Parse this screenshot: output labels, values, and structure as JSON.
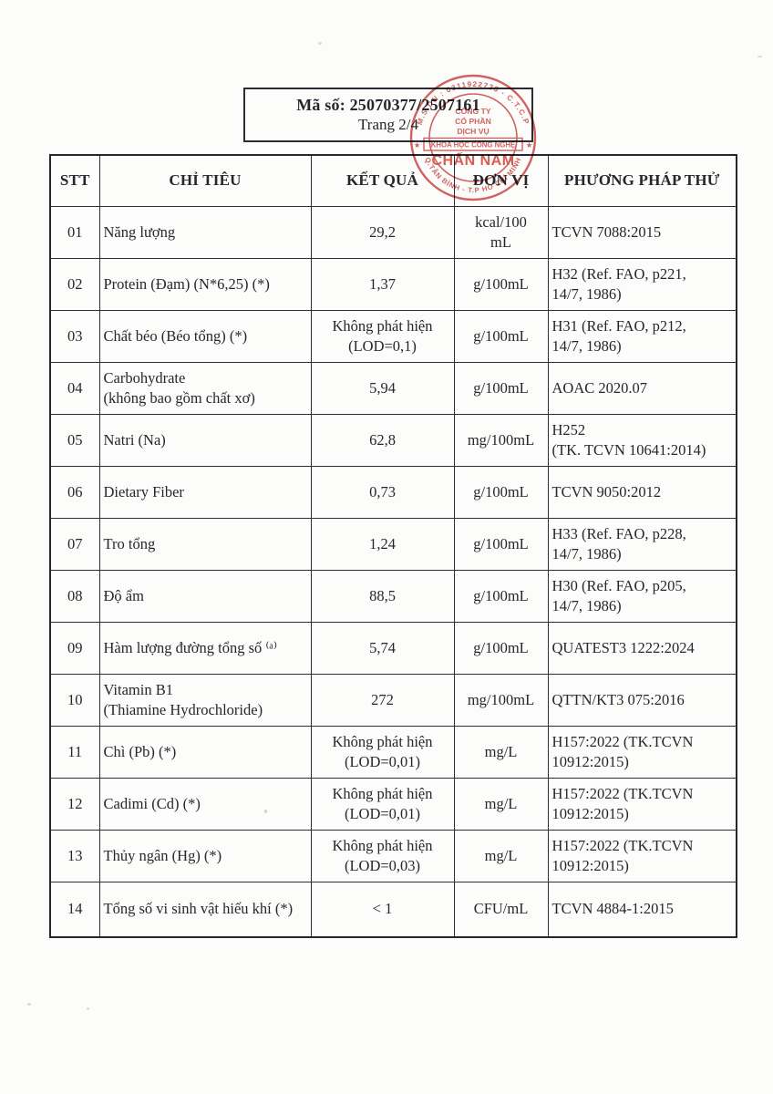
{
  "header_box": {
    "code_label": "Mã số: 25070377/2507161",
    "page_label": "Trang 2/4"
  },
  "stamp": {
    "color": "#c7423e",
    "name_color": "#cf3a30",
    "arc_top": "M.S.DN : 0311922735 - C.T.C.P",
    "line1": "CÔNG TY",
    "line2": "CỔ PHẦN",
    "line3": "DỊCH VỤ",
    "boxed_line": "KHOA HỌC CÔNG NGHỆ",
    "star_left": "★",
    "star_right": "★",
    "company_name": "CHẤN NAM",
    "arc_bottom": "Q.TÂN BÌNH - T.P HỒ CHÍ MINH"
  },
  "table": {
    "headers": {
      "stt": "STT",
      "chi_tieu": "CHỈ TIÊU",
      "ket_qua": "KẾT QUẢ",
      "don_vi": "ĐƠN VỊ",
      "phuong_phap": "PHƯƠNG PHÁP THỬ"
    },
    "rows": [
      {
        "stt": "01",
        "chi_tieu": "Năng lượng",
        "ket_qua": "29,2",
        "don_vi": "kcal/100\nmL",
        "phuong_phap": "TCVN 7088:2015"
      },
      {
        "stt": "02",
        "chi_tieu": "Protein (Đạm) (N*6,25) (*)",
        "ket_qua": "1,37",
        "don_vi": "g/100mL",
        "phuong_phap": "H32 (Ref. FAO, p221,\n14/7, 1986)"
      },
      {
        "stt": "03",
        "chi_tieu": "Chất béo (Béo tổng) (*)",
        "ket_qua": "Không phát hiện\n(LOD=0,1)",
        "don_vi": "g/100mL",
        "phuong_phap": "H31 (Ref. FAO, p212,\n14/7, 1986)"
      },
      {
        "stt": "04",
        "chi_tieu": "Carbohydrate\n(không bao gồm chất xơ)",
        "ket_qua": "5,94",
        "don_vi": "g/100mL",
        "phuong_phap": "AOAC 2020.07"
      },
      {
        "stt": "05",
        "chi_tieu": "Natri (Na)",
        "ket_qua": "62,8",
        "don_vi": "mg/100mL",
        "phuong_phap": "H252\n(TK. TCVN 10641:2014)"
      },
      {
        "stt": "06",
        "chi_tieu": "Dietary Fiber",
        "ket_qua": "0,73",
        "don_vi": "g/100mL",
        "phuong_phap": "TCVN 9050:2012"
      },
      {
        "stt": "07",
        "chi_tieu": "Tro tổng",
        "ket_qua": "1,24",
        "don_vi": "g/100mL",
        "phuong_phap": "H33 (Ref. FAO, p228,\n14/7, 1986)"
      },
      {
        "stt": "08",
        "chi_tieu": "Độ ẩm",
        "ket_qua": "88,5",
        "don_vi": "g/100mL",
        "phuong_phap": "H30 (Ref. FAO, p205,\n14/7, 1986)"
      },
      {
        "stt": "09",
        "chi_tieu": "Hàm lượng đường tổng số ⁽ᵃ⁾",
        "ket_qua": "5,74",
        "don_vi": "g/100mL",
        "phuong_phap": "QUATEST3 1222:2024"
      },
      {
        "stt": "10",
        "chi_tieu": "Vitamin B1\n(Thiamine Hydrochloride)",
        "ket_qua": "272",
        "don_vi": "mg/100mL",
        "phuong_phap": "QTTN/KT3 075:2016"
      },
      {
        "stt": "11",
        "chi_tieu": "Chì (Pb) (*)",
        "ket_qua": "Không phát hiện\n(LOD=0,01)",
        "don_vi": "mg/L",
        "phuong_phap": "H157:2022 (TK.TCVN\n10912:2015)"
      },
      {
        "stt": "12",
        "chi_tieu": "Cadimi (Cd) (*)",
        "ket_qua": "Không phát hiện\n(LOD=0,01)",
        "don_vi": "mg/L",
        "phuong_phap": "H157:2022 (TK.TCVN\n10912:2015)"
      },
      {
        "stt": "13",
        "chi_tieu": "Thủy ngân (Hg) (*)",
        "ket_qua": "Không phát hiện\n(LOD=0,03)",
        "don_vi": "mg/L",
        "phuong_phap": "H157:2022 (TK.TCVN\n10912:2015)"
      },
      {
        "stt": "14",
        "chi_tieu": "Tổng số vi sinh vật hiếu khí (*)",
        "ket_qua": "< 1",
        "don_vi": "CFU/mL",
        "phuong_phap": "TCVN 4884-1:2015"
      }
    ]
  }
}
